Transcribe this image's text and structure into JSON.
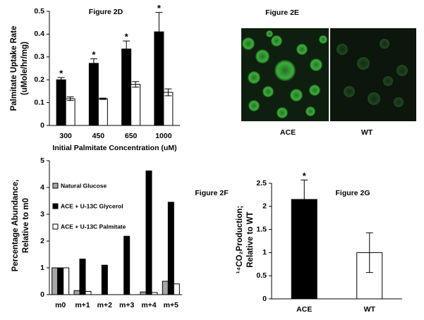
{
  "chart_data": [
    {
      "type": "bar",
      "title": "Figure 2D",
      "y_label": [
        "Palmitate Uptake Rate",
        "(uMole/hr/mg)"
      ],
      "x_label": "Initial Palmitate Concentration (uM)",
      "categories": [
        "300",
        "450",
        "650",
        "1000"
      ],
      "series": [
        {
          "color": "#000000",
          "values": [
            0.2,
            0.272,
            0.335,
            0.41
          ],
          "errors": [
            0.01,
            0.02,
            0.035,
            0.085
          ],
          "annotations": [
            "*",
            "*",
            "*",
            "*"
          ]
        },
        {
          "color": "#ffffff",
          "values": [
            0.117,
            0.117,
            0.18,
            0.145
          ],
          "errors": [
            0.008,
            0.003,
            0.012,
            0.015
          ]
        }
      ],
      "ylim": [
        0,
        0.5
      ],
      "yticks": [
        0,
        0.1,
        0.2,
        0.3,
        0.4,
        0.5
      ]
    },
    {
      "type": "bar",
      "title": "Figure 2F",
      "y_label": [
        "Percentage Abundance,",
        "Relative to m0"
      ],
      "categories": [
        "m0",
        "m+1",
        "m+2",
        "m+3",
        "m+4",
        "m+5"
      ],
      "series": [
        {
          "name": "Natural Glucose",
          "color": "#a6a6a6",
          "values": [
            1.0,
            0.15,
            0,
            0,
            0.1,
            0.5
          ]
        },
        {
          "name": "ACE + U-13C Glycerol",
          "color": "#000000",
          "values": [
            1.0,
            1.33,
            1.1,
            2.18,
            4.62,
            3.45
          ]
        },
        {
          "name": "ACE + U-13C Palmitate",
          "color": "#ffffff",
          "values": [
            1.0,
            0.12,
            0,
            0,
            0.08,
            0.4
          ]
        }
      ],
      "ylim": [
        0,
        5
      ],
      "yticks": [
        0,
        1,
        2,
        3,
        4,
        5
      ],
      "legend": "upper-left"
    },
    {
      "type": "bar",
      "title": "Figure 2G",
      "y_label": [
        "¹⁴CO₂Production;",
        "Relative to WT"
      ],
      "categories": [
        "ACE",
        "WT"
      ],
      "series": [
        {
          "colors": [
            "#000000",
            "#ffffff"
          ],
          "values": [
            2.15,
            1.0
          ],
          "errors": [
            0.42,
            0.43
          ],
          "annotations": [
            "*",
            null
          ]
        }
      ],
      "ylim": [
        0,
        2.5
      ],
      "yticks": [
        0,
        0.5,
        1,
        1.5,
        2,
        2.5
      ]
    }
  ],
  "image_panel": {
    "title": "Figure 2E",
    "labels": [
      "ACE",
      "WT"
    ]
  }
}
